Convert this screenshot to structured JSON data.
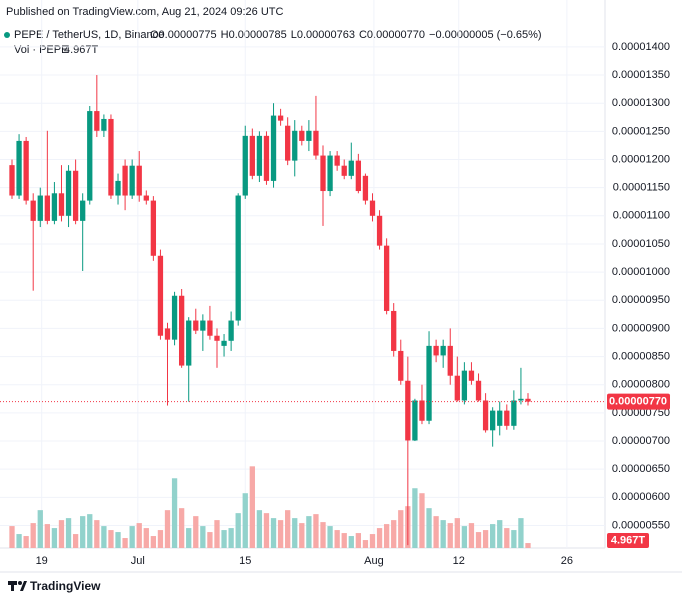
{
  "chart_data": {
    "type": "candlestick",
    "published": "Published on TradingView.com, Aug 21, 2024 09:26 UTC",
    "symbol": "PEPE / TetherUS, 1D, Binance",
    "ohlc_legend": [
      "O0.00000775",
      "H0.00000785",
      "L0.00000763",
      "C0.00000770",
      "−0.00000005 (−0.65%)"
    ],
    "volume_legend": {
      "name": "Vol · PEPE",
      "value": "4.967T"
    },
    "footer": "TradingView",
    "up_color": "#089981",
    "down_color": "#f23645",
    "up_volume_color": "#92d2cc",
    "down_volume_color": "#f7a9a7",
    "ylim": [
      5.1e-06,
      1.43e-05
    ],
    "yticks": [
      {
        "value": 5.5e-06,
        "label": "0.00000550"
      },
      {
        "value": 6e-06,
        "label": "0.00000600"
      },
      {
        "value": 6.5e-06,
        "label": "0.00000650"
      },
      {
        "value": 7e-06,
        "label": "0.00000700"
      },
      {
        "value": 7.5e-06,
        "label": "0.00000750"
      },
      {
        "value": 8e-06,
        "label": "0.00000800"
      },
      {
        "value": 8.5e-06,
        "label": "0.00000850"
      },
      {
        "value": 9e-06,
        "label": "0.00000900"
      },
      {
        "value": 9.5e-06,
        "label": "0.00000950"
      },
      {
        "value": 1e-05,
        "label": "0.00001000"
      },
      {
        "value": 1.05e-05,
        "label": "0.00001050"
      },
      {
        "value": 1.1e-05,
        "label": "0.00001100"
      },
      {
        "value": 1.15e-05,
        "label": "0.00001150"
      },
      {
        "value": 1.2e-05,
        "label": "0.00001200"
      },
      {
        "value": 1.25e-05,
        "label": "0.00001250"
      },
      {
        "value": 1.3e-05,
        "label": "0.00001300"
      },
      {
        "value": 1.35e-05,
        "label": "0.00001350"
      },
      {
        "value": 1.4e-05,
        "label": "0.00001400"
      }
    ],
    "xlim": [
      -0.5,
      81
    ],
    "xticks": [
      {
        "value": 4.2,
        "label": "19"
      },
      {
        "value": 17.8,
        "label": "Jul"
      },
      {
        "value": 33,
        "label": "15"
      },
      {
        "value": 51.2,
        "label": "Aug"
      },
      {
        "value": 63.2,
        "label": "12"
      },
      {
        "value": 78.5,
        "label": "26"
      }
    ],
    "last_price": {
      "value": 7.7e-06,
      "label": "0.00000770"
    },
    "open": [
      1.19e-05,
      1.136e-05,
      1.233e-05,
      1.127e-05,
      1.091e-05,
      1.136e-05,
      1.091e-05,
      1.14e-05,
      1.1e-05,
      1.18e-05,
      1.091e-05,
      1.127e-05,
      1.286e-05,
      1.251e-05,
      1.272e-05,
      1.136e-05,
      1.189e-05,
      1.136e-05,
      1.189e-05,
      1.136e-05,
      1.127e-05,
      1.029e-05,
      9e-06,
      8.8e-06,
      9.58e-06,
      8.34e-06,
      9.14e-06,
      8.96e-06,
      9.14e-06,
      8.87e-06,
      8.69e-06,
      8.78e-06,
      9.14e-06,
      1.136e-05,
      1.242e-05,
      1.171e-05,
      1.242e-05,
      1.162e-05,
      1.278e-05,
      1.26e-05,
      1.198e-05,
      1.251e-05,
      1.233e-05,
      1.251e-05,
      1.207e-05,
      1.144e-05,
      1.207e-05,
      1.189e-05,
      1.171e-05,
      1.198e-05,
      1.171e-05,
      1.127e-05,
      1.1e-05,
      1.047e-05,
      9.31e-06,
      8.6e-06,
      8.07e-06,
      7.01e-06,
      7.72e-06,
      7.36e-06,
      8.69e-06,
      8.52e-06,
      8.69e-06,
      8.16e-06,
      7.72e-06,
      8.25e-06,
      8.07e-06,
      7.72e-06,
      7.19e-06,
      7.27e-06,
      7.54e-06,
      7.27e-06,
      7.72e-06,
      7.75e-06
    ],
    "high": [
      1.2e-05,
      1.245e-05,
      1.24e-05,
      1.14e-05,
      1.15e-05,
      1.251e-05,
      1.16e-05,
      1.19e-05,
      1.19e-05,
      1.2e-05,
      1.14e-05,
      1.295e-05,
      1.35e-05,
      1.28e-05,
      1.28e-05,
      1.175e-05,
      1.2e-05,
      1.2e-05,
      1.215e-05,
      1.145e-05,
      1.135e-05,
      1.04e-05,
      9.1e-06,
      9.65e-06,
      9.7e-06,
      9.2e-06,
      9.35e-06,
      9.25e-06,
      9.4e-06,
      9e-06,
      8.9e-06,
      9.3e-06,
      1.14e-05,
      1.26e-05,
      1.255e-05,
      1.25e-05,
      1.25e-05,
      1.3e-05,
      1.29e-05,
      1.275e-05,
      1.27e-05,
      1.26e-05,
      1.27e-05,
      1.313e-05,
      1.225e-05,
      1.215e-05,
      1.215e-05,
      1.2e-05,
      1.23e-05,
      1.21e-05,
      1.175e-05,
      1.14e-05,
      1.11e-05,
      1.06e-05,
      9.45e-06,
      8.8e-06,
      8.5e-06,
      7.75e-06,
      8e-06,
      8.95e-06,
      8.8e-06,
      8.8e-06,
      9e-06,
      8.5e-06,
      8.4e-06,
      8.4e-06,
      8.2e-06,
      7.85e-06,
      7.6e-06,
      7.7e-06,
      7.65e-06,
      7.9e-06,
      8.3e-06,
      7.85e-06
    ],
    "low": [
      1.13e-05,
      1.13e-05,
      1.12e-05,
      9.67e-06,
      1.08e-05,
      1.085e-05,
      1.085e-05,
      1.09e-05,
      1.08e-05,
      1.085e-05,
      1.002e-05,
      1.12e-05,
      1.24e-05,
      1.24e-05,
      1.13e-05,
      1.12e-05,
      1.11e-05,
      1.13e-05,
      1.125e-05,
      1.12e-05,
      1.02e-05,
      8.8e-06,
      7.63e-06,
      8.7e-06,
      8.3e-06,
      7.7e-06,
      8.9e-06,
      8.6e-06,
      8.8e-06,
      8.3e-06,
      8.5e-06,
      8.6e-06,
      9.05e-06,
      1.13e-05,
      1.165e-05,
      1.16e-05,
      1.155e-05,
      1.15e-05,
      1.26e-05,
      1.19e-05,
      1.17e-05,
      1.225e-05,
      1.215e-05,
      1.2e-05,
      1.082e-05,
      1.135e-05,
      1.18e-05,
      1.165e-05,
      1.165e-05,
      1.14e-05,
      1.12e-05,
      1.09e-05,
      1.04e-05,
      9.25e-06,
      8.5e-06,
      8e-06,
      5.15e-06,
      7e-06,
      7.3e-06,
      7.3e-06,
      8.4e-06,
      8.3e-06,
      8e-06,
      7.7e-06,
      7.65e-06,
      8e-06,
      7.7e-06,
      7.15e-06,
      6.9e-06,
      7.1e-06,
      7.2e-06,
      7.2e-06,
      7.65e-06,
      7.63e-06
    ],
    "close": [
      1.136e-05,
      1.233e-05,
      1.127e-05,
      1.091e-05,
      1.136e-05,
      1.091e-05,
      1.14e-05,
      1.1e-05,
      1.18e-05,
      1.091e-05,
      1.127e-05,
      1.286e-05,
      1.251e-05,
      1.272e-05,
      1.136e-05,
      1.162e-05,
      1.136e-05,
      1.189e-05,
      1.136e-05,
      1.127e-05,
      1.029e-05,
      8.87e-06,
      8.8e-06,
      9.58e-06,
      8.34e-06,
      9.14e-06,
      8.96e-06,
      9.14e-06,
      8.87e-06,
      8.78e-06,
      8.78e-06,
      9.14e-06,
      1.136e-05,
      1.242e-05,
      1.171e-05,
      1.242e-05,
      1.162e-05,
      1.278e-05,
      1.269e-05,
      1.198e-05,
      1.251e-05,
      1.233e-05,
      1.251e-05,
      1.207e-05,
      1.144e-05,
      1.207e-05,
      1.189e-05,
      1.171e-05,
      1.198e-05,
      1.144e-05,
      1.127e-05,
      1.1e-05,
      1.047e-05,
      9.31e-06,
      8.6e-06,
      8.07e-06,
      7.01e-06,
      7.72e-06,
      7.36e-06,
      8.69e-06,
      8.52e-06,
      8.69e-06,
      8.16e-06,
      7.72e-06,
      8.25e-06,
      8.07e-06,
      7.72e-06,
      7.19e-06,
      7.54e-06,
      7.54e-06,
      7.27e-06,
      7.72e-06,
      7.75e-06,
      7.7e-06
    ],
    "volume_ylim": [
      0,
      520
    ],
    "volume": [
      22,
      14,
      12,
      25,
      38,
      24,
      20,
      28,
      30,
      14,
      32,
      34,
      28,
      22,
      18,
      16,
      10,
      22,
      25,
      20,
      12,
      18,
      38,
      70,
      40,
      20,
      32,
      22,
      16,
      28,
      18,
      20,
      35,
      55,
      82,
      38,
      35,
      30,
      28,
      38,
      30,
      25,
      32,
      34,
      26,
      22,
      18,
      15,
      12,
      15,
      8,
      14,
      20,
      24,
      28,
      38,
      42,
      60,
      55,
      40,
      32,
      28,
      25,
      30,
      22,
      25,
      16,
      18,
      24,
      28,
      20,
      18,
      30,
      4.967
    ]
  }
}
